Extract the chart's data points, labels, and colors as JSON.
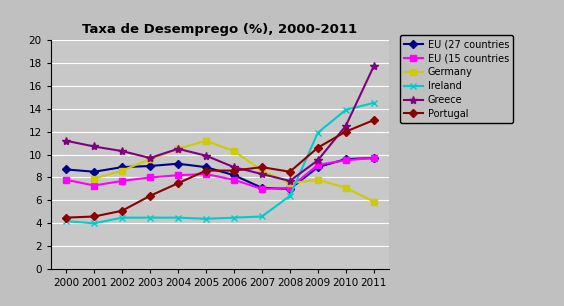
{
  "title": "Taxa de Desemprego (%), 2000-2011",
  "years": [
    2000,
    2001,
    2002,
    2003,
    2004,
    2005,
    2006,
    2007,
    2008,
    2009,
    2010,
    2011
  ],
  "series": {
    "EU (27 countries": {
      "values": [
        8.7,
        8.5,
        8.9,
        9.0,
        9.2,
        8.9,
        8.2,
        7.1,
        7.0,
        8.9,
        9.6,
        9.7
      ],
      "color": "#00008B",
      "marker": "D",
      "linewidth": 1.5,
      "markersize": 4
    },
    "EU (15 countries": {
      "values": [
        7.8,
        7.3,
        7.7,
        8.0,
        8.2,
        8.3,
        7.8,
        7.0,
        7.1,
        9.1,
        9.5,
        9.7
      ],
      "color": "#FF00FF",
      "marker": "s",
      "linewidth": 1.5,
      "markersize": 4
    },
    "Germany": {
      "values": [
        null,
        7.9,
        8.6,
        9.6,
        10.5,
        11.2,
        10.3,
        8.6,
        7.5,
        7.8,
        7.1,
        5.9
      ],
      "color": "#CCCC00",
      "marker": "s",
      "linewidth": 1.5,
      "markersize": 4
    },
    "Ireland": {
      "values": [
        4.2,
        4.0,
        4.5,
        4.5,
        4.5,
        4.4,
        4.5,
        4.6,
        6.4,
        11.9,
        13.9,
        14.5
      ],
      "color": "#00CCCC",
      "marker": "x",
      "linewidth": 1.5,
      "markersize": 5
    },
    "Greece": {
      "values": [
        11.2,
        10.7,
        10.3,
        9.7,
        10.5,
        9.9,
        8.9,
        8.3,
        7.7,
        9.5,
        12.5,
        17.7
      ],
      "color": "#800080",
      "marker": "*",
      "linewidth": 1.5,
      "markersize": 6
    },
    "Portugal": {
      "values": [
        4.5,
        4.6,
        5.1,
        6.4,
        7.5,
        8.6,
        8.6,
        8.9,
        8.5,
        10.6,
        12.0,
        13.0
      ],
      "color": "#8B0000",
      "marker": "D",
      "linewidth": 1.5,
      "markersize": 4
    }
  },
  "ylim": [
    0,
    20
  ],
  "yticks": [
    0,
    2,
    4,
    6,
    8,
    10,
    12,
    14,
    16,
    18,
    20
  ],
  "figure_bg": "#C0C0C0",
  "plot_bg": "#C8C8C8",
  "title_fontsize": 9.5,
  "tick_fontsize": 7.5,
  "legend_fontsize": 7.0
}
